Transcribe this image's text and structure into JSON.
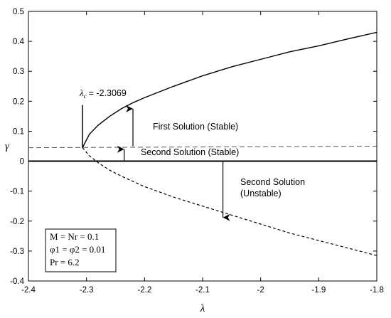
{
  "chart_data": {
    "type": "line",
    "xlabel": "λ",
    "ylabel": "γ",
    "xlim": [
      -2.4,
      -1.8
    ],
    "ylim": [
      -0.4,
      0.5
    ],
    "xticks": [
      -2.4,
      -2.3,
      -2.2,
      -2.1,
      -2.0,
      -1.9,
      -1.8
    ],
    "xtick_labels": [
      "-2.4",
      "-2.3",
      "-2.2",
      "-2.1",
      "-2",
      "-1.9",
      "-1.8"
    ],
    "yticks": [
      -0.4,
      -0.3,
      -0.2,
      -0.1,
      0,
      0.1,
      0.2,
      0.3,
      0.4,
      0.5
    ],
    "ytick_labels": [
      "-0.4",
      "-0.3",
      "-0.2",
      "-0.1",
      "0",
      "0.1",
      "0.2",
      "0.3",
      "0.4",
      "0.5"
    ],
    "grid": false,
    "series": [
      {
        "style": "solid",
        "color": "#000000",
        "x": [
          -2.3069,
          -2.295,
          -2.28,
          -2.26,
          -2.24,
          -2.22,
          -2.2,
          -2.15,
          -2.1,
          -2.05,
          -2.0,
          -1.95,
          -1.9,
          -1.85,
          -1.8
        ],
        "y": [
          0.045,
          0.09,
          0.12,
          0.15,
          0.175,
          0.195,
          0.212,
          0.25,
          0.285,
          0.315,
          0.34,
          0.365,
          0.385,
          0.408,
          0.43
        ]
      },
      {
        "style": "dashed",
        "color": "#000000",
        "x": [
          -2.3069,
          -2.295,
          -2.28,
          -2.26,
          -2.24,
          -2.2,
          -2.15,
          -2.1,
          -2.05,
          -2.0,
          -1.95,
          -1.9,
          -1.85,
          -1.8
        ],
        "y": [
          0.045,
          0.018,
          -0.005,
          -0.03,
          -0.05,
          -0.085,
          -0.12,
          -0.15,
          -0.18,
          -0.21,
          -0.24,
          -0.265,
          -0.29,
          -0.315
        ]
      },
      {
        "style": "dashed-thin",
        "color": "#555555",
        "x": [
          -2.4,
          -1.8
        ],
        "y": [
          0.045,
          0.05
        ]
      },
      {
        "style": "solid-thick",
        "color": "#000000",
        "x": [
          -2.4,
          -1.8
        ],
        "y": [
          0.0,
          0.0
        ]
      }
    ],
    "critical": {
      "x": -2.3069,
      "y": 0.045,
      "label_prefix": "λ",
      "label_sub": "c",
      "label_value": "= -2.3069"
    },
    "annotations": {
      "first_solution": "First Solution (Stable)",
      "second_stable": "Second Solution (Stable)",
      "second_unstable_line1": "Second Solution",
      "second_unstable_line2": "(Unstable)"
    },
    "arrows": [
      {
        "x": -2.22,
        "from": 0.05,
        "to": 0.175
      },
      {
        "x": -2.235,
        "from": 0.0,
        "to": 0.04
      },
      {
        "x": -2.065,
        "from": 0.0,
        "to": -0.188
      }
    ],
    "legend_box": {
      "position": "bottom-left",
      "lines": [
        "M = Nr = 0.1",
        "φ1 = φ2 = 0.01",
        "Pr = 6.2"
      ]
    }
  }
}
